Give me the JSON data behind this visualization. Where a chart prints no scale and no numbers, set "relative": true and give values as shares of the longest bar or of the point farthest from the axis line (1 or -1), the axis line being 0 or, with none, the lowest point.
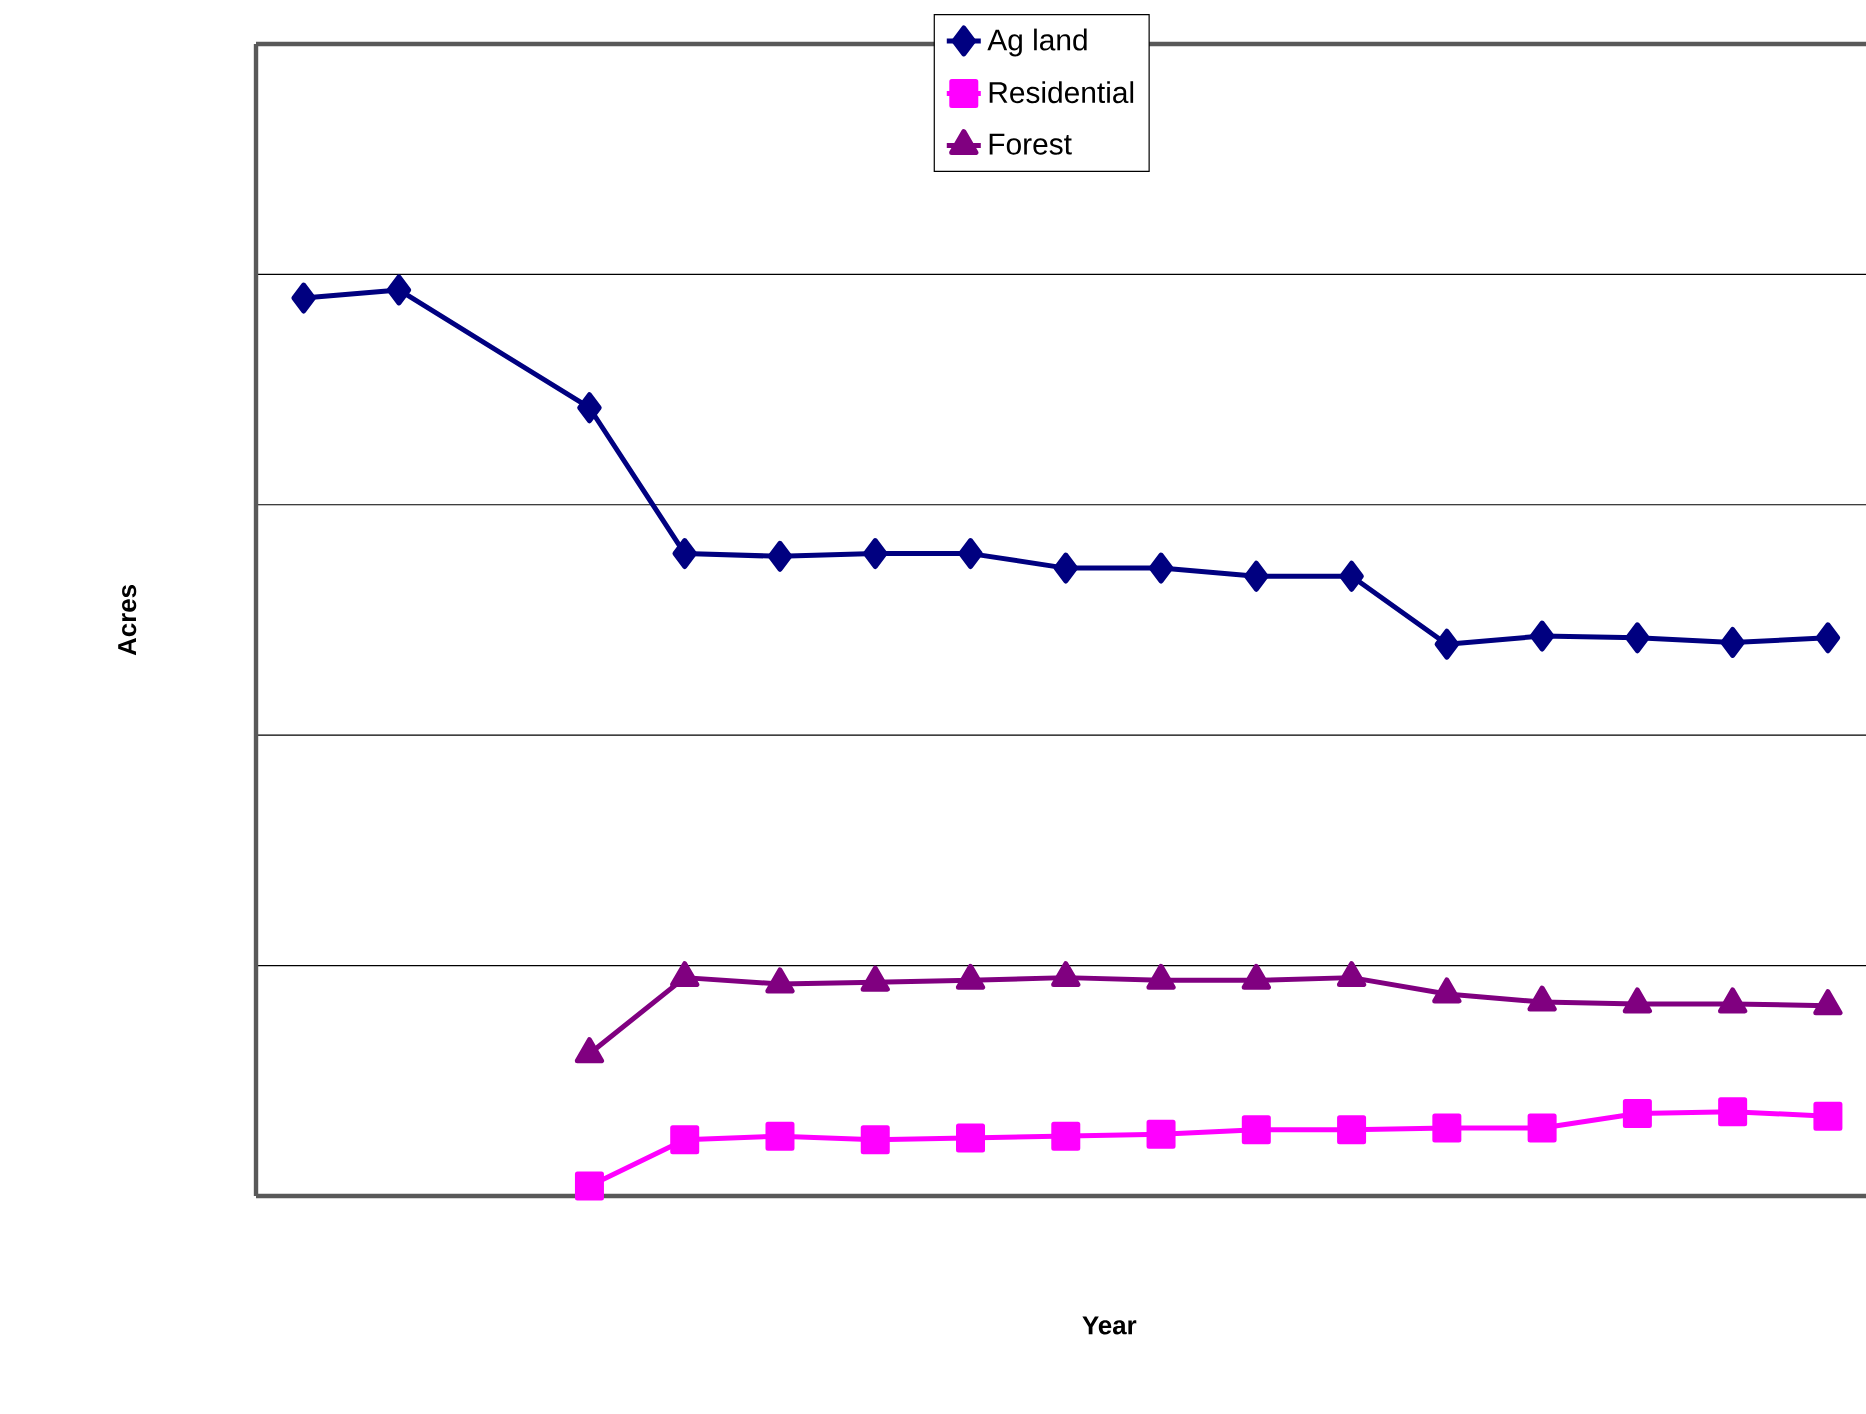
{
  "chart_data": {
    "type": "line",
    "xlabel": "Year",
    "ylabel": "Acres",
    "relative": true,
    "grid": "y",
    "legend": "top",
    "categories": [
      null,
      null,
      null,
      null,
      null,
      null,
      null,
      null,
      null,
      null,
      null,
      null,
      null,
      null,
      null,
      null,
      null
    ],
    "series": [
      {
        "name": "Ag land",
        "color": "#000080",
        "marker": "diamond",
        "values": [
          0.991,
          1,
          null,
          0.87,
          0.709,
          0.706,
          0.709,
          0.709,
          0.693,
          0.693,
          0.684,
          0.684,
          0.609,
          0.618,
          0.616,
          0.611,
          0.616
        ]
      },
      {
        "name": "Residential",
        "color": "#ff00ff",
        "marker": "square",
        "values": [
          null,
          null,
          null,
          0.011,
          0.062,
          0.066,
          0.062,
          0.064,
          0.066,
          0.068,
          0.073,
          0.073,
          0.075,
          0.075,
          0.091,
          0.093,
          0.088
        ]
      },
      {
        "name": "Forest",
        "color": "#800080",
        "marker": "triangle",
        "values": [
          null,
          null,
          null,
          0.157,
          0.241,
          0.234,
          0.236,
          0.238,
          0.241,
          0.238,
          0.238,
          0.241,
          0.223,
          0.214,
          0.212,
          0.212,
          0.21
        ]
      }
    ]
  }
}
